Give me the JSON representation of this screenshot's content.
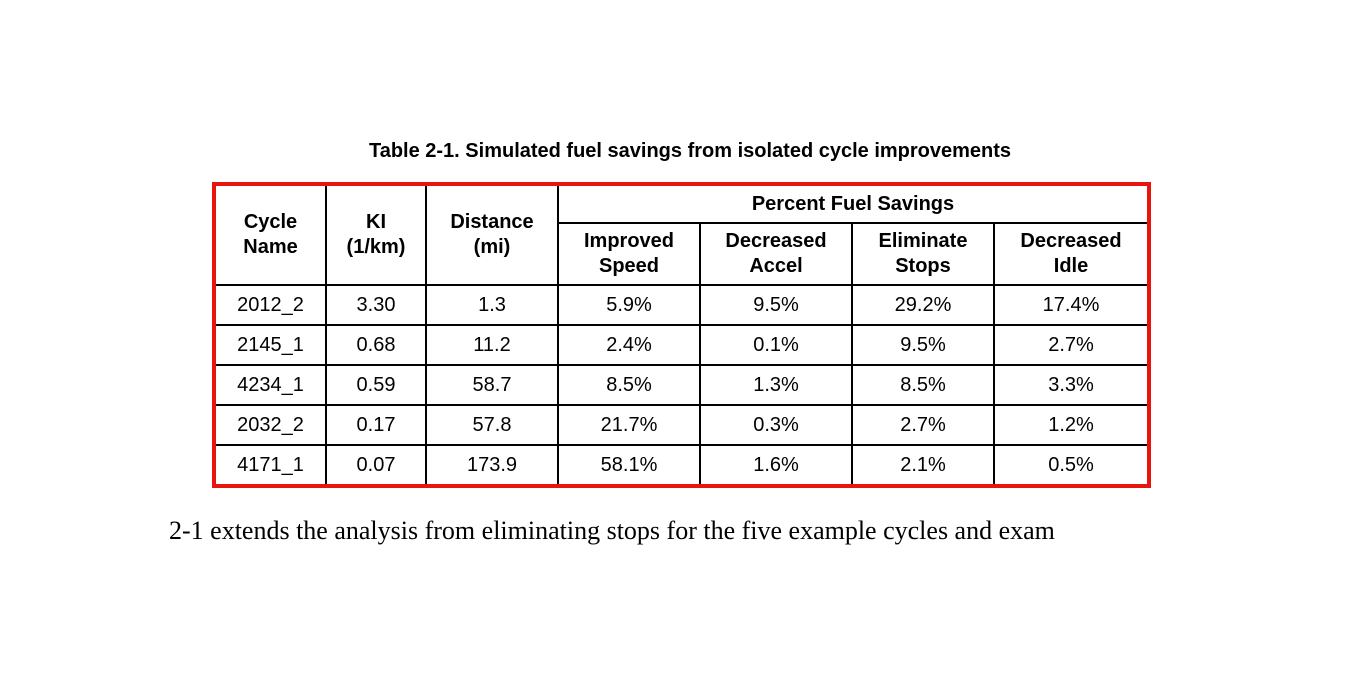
{
  "document": {
    "caption": "Table 2-1. Simulated fuel savings from isolated cycle improvements",
    "body_text": "2-1 extends the analysis from eliminating stops for the five example cycles and exam"
  },
  "colors": {
    "table_border_red": "#e8140f",
    "grid_line_black": "#000000",
    "background": "#ffffff"
  },
  "table": {
    "headers": {
      "cycle_name": "Cycle\nName",
      "ki": "KI\n(1/km)",
      "distance": "Distance\n(mi)",
      "group": "Percent Fuel Savings",
      "improved_speed": "Improved\nSpeed",
      "decreased_accel": "Decreased\nAccel",
      "eliminate_stops": "Eliminate\nStops",
      "decreased_idle": "Decreased\nIdle"
    },
    "rows": [
      [
        "2012_2",
        "3.30",
        "1.3",
        "5.9%",
        "9.5%",
        "29.2%",
        "17.4%"
      ],
      [
        "2145_1",
        "0.68",
        "11.2",
        "2.4%",
        "0.1%",
        "9.5%",
        "2.7%"
      ],
      [
        "4234_1",
        "0.59",
        "58.7",
        "8.5%",
        "1.3%",
        "8.5%",
        "3.3%"
      ],
      [
        "2032_2",
        "0.17",
        "57.8",
        "21.7%",
        "0.3%",
        "2.7%",
        "1.2%"
      ],
      [
        "4171_1",
        "0.07",
        "173.9",
        "58.1%",
        "1.6%",
        "2.1%",
        "0.5%"
      ]
    ]
  }
}
